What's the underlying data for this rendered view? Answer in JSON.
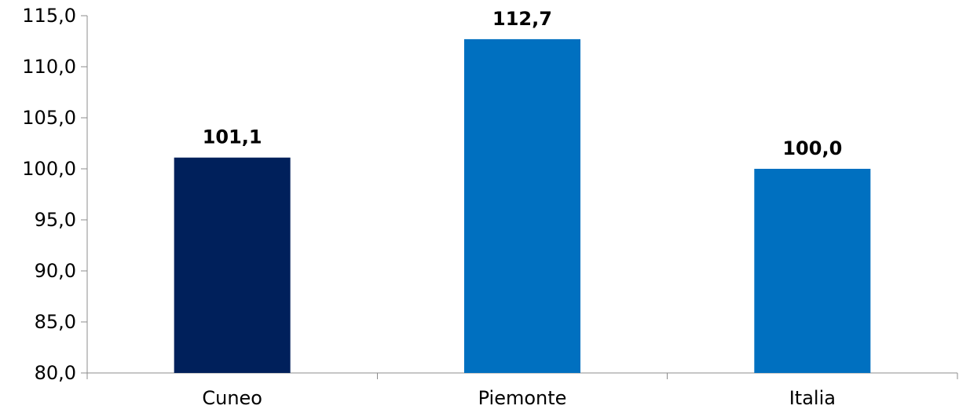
{
  "chart_data": {
    "type": "bar",
    "title": "",
    "xlabel": "",
    "ylabel": "",
    "categories": [
      "Cuneo",
      "Piemonte",
      "Italia"
    ],
    "values": [
      101.1,
      112.7,
      100.0
    ],
    "value_labels": [
      "101,1",
      "112,7",
      "100,0"
    ],
    "bar_colors": [
      "#00205b",
      "#0070c0",
      "#0070c0"
    ],
    "ylim": [
      80,
      115
    ],
    "yticks": [
      80,
      85,
      90,
      95,
      100,
      105,
      110,
      115
    ],
    "ytick_labels": [
      "80,0",
      "85,0",
      "90,0",
      "95,0",
      "100,0",
      "105,0",
      "110,0",
      "115,0"
    ],
    "grid": false,
    "legend": "none"
  }
}
